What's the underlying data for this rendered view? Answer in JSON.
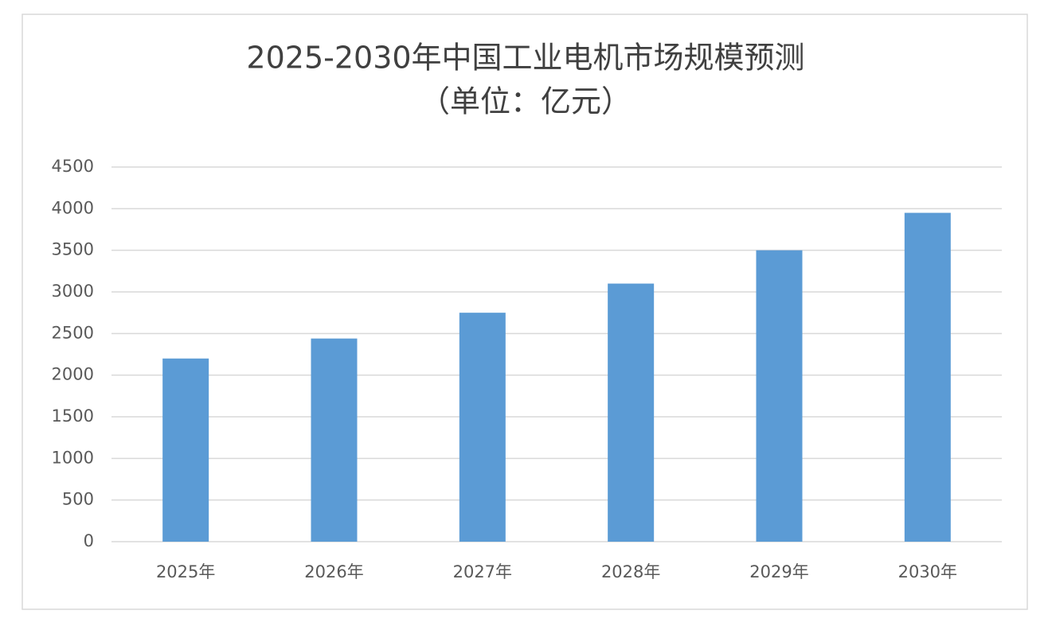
{
  "chart_data": {
    "type": "bar",
    "title": "2025-2030年中国工业电机市场规模预测",
    "subtitle": "（单位：亿元）",
    "categories": [
      "2025年",
      "2026年",
      "2027年",
      "2028年",
      "2029年",
      "2030年"
    ],
    "values": [
      2200,
      2440,
      2750,
      3100,
      3500,
      3950
    ],
    "color": "#5b9bd5",
    "ylim": [
      0,
      4500
    ],
    "yticks": [
      0,
      500,
      1000,
      1500,
      2000,
      2500,
      3000,
      3500,
      4000,
      4500
    ],
    "grid": true
  }
}
